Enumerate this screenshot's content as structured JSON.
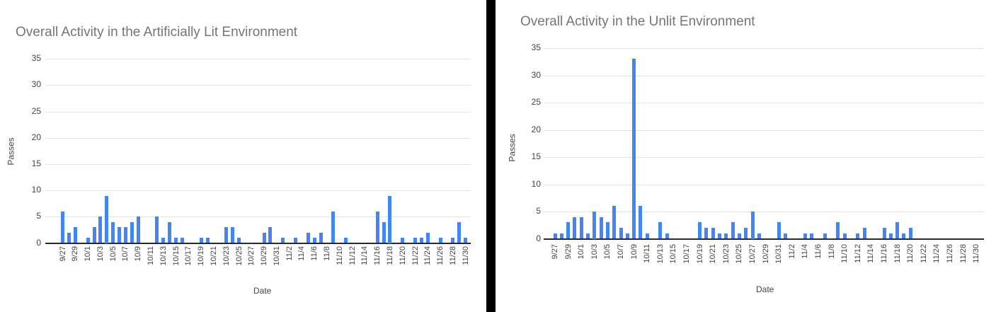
{
  "colors": {
    "bar": "#4285f4",
    "title_text": "#757575",
    "axis_text": "#424242",
    "gridline": "#e3e3e3",
    "axis_line": "#2b2b2b",
    "frame": "#000000"
  },
  "chart_data": [
    {
      "type": "bar",
      "title": "Overall Activity in the Artificially Lit Environment",
      "xlabel": "Date",
      "ylabel": "Passes",
      "ylim": [
        0,
        35
      ],
      "yticks": [
        0,
        5,
        10,
        15,
        20,
        25,
        30,
        35
      ],
      "grid": true,
      "categories": [
        "9/27",
        "9/28",
        "9/29",
        "9/30",
        "10/1",
        "10/2",
        "10/3",
        "10/4",
        "10/5",
        "10/6",
        "10/7",
        "10/8",
        "10/9",
        "10/10",
        "10/11",
        "10/12",
        "10/13",
        "10/14",
        "10/15",
        "10/16",
        "10/17",
        "10/18",
        "10/19",
        "10/20",
        "10/21",
        "10/22",
        "10/23",
        "10/24",
        "10/25",
        "10/26",
        "10/27",
        "10/28",
        "10/29",
        "10/30",
        "10/31",
        "11/1",
        "11/2",
        "11/3",
        "11/4",
        "11/5",
        "11/6",
        "11/7",
        "11/8",
        "11/9",
        "11/10",
        "11/11",
        "11/12",
        "11/13",
        "11/14",
        "11/15",
        "11/16",
        "11/17",
        "11/18",
        "11/19",
        "11/20",
        "11/21",
        "11/22",
        "11/23",
        "11/24",
        "11/25",
        "11/26",
        "11/27",
        "11/28",
        "11/29",
        "11/30"
      ],
      "values": [
        6,
        2,
        3,
        0,
        1,
        3,
        5,
        9,
        4,
        3,
        3,
        4,
        5,
        0,
        0,
        5,
        1,
        4,
        1,
        1,
        0,
        0,
        1,
        1,
        0,
        0,
        3,
        3,
        1,
        0,
        0,
        0,
        2,
        3,
        0,
        1,
        0,
        1,
        0,
        2,
        1,
        2,
        0,
        6,
        0,
        1,
        0,
        0,
        0,
        0,
        6,
        4,
        9,
        0,
        1,
        0,
        1,
        1,
        2,
        0,
        1,
        0,
        1,
        4,
        1
      ],
      "xtick_every": 2
    },
    {
      "type": "bar",
      "title": "Overall Activity in the Unlit Environment",
      "xlabel": "Date",
      "ylabel": "Passes",
      "ylim": [
        0,
        35
      ],
      "yticks": [
        0,
        5,
        10,
        15,
        20,
        25,
        30,
        35
      ],
      "grid": true,
      "categories": [
        "9/27",
        "9/28",
        "9/29",
        "9/30",
        "10/1",
        "10/2",
        "10/3",
        "10/4",
        "10/5",
        "10/6",
        "10/7",
        "10/8",
        "10/9",
        "10/10",
        "10/11",
        "10/12",
        "10/13",
        "10/14",
        "10/15",
        "10/16",
        "10/17",
        "10/18",
        "10/19",
        "10/20",
        "10/21",
        "10/22",
        "10/23",
        "10/24",
        "10/25",
        "10/26",
        "10/27",
        "10/28",
        "10/29",
        "10/30",
        "10/31",
        "11/1",
        "11/2",
        "11/3",
        "11/4",
        "11/5",
        "11/6",
        "11/7",
        "11/8",
        "11/9",
        "11/10",
        "11/11",
        "11/12",
        "11/13",
        "11/14",
        "11/15",
        "11/16",
        "11/17",
        "11/18",
        "11/19",
        "11/20",
        "11/21",
        "11/22",
        "11/23",
        "11/24",
        "11/25",
        "11/26",
        "11/27",
        "11/28",
        "11/29",
        "11/30"
      ],
      "values": [
        1,
        1,
        3,
        4,
        4,
        1,
        5,
        4,
        3,
        6,
        2,
        1,
        33,
        6,
        1,
        0,
        3,
        1,
        0,
        0,
        0,
        0,
        3,
        2,
        2,
        1,
        1,
        3,
        1,
        2,
        5,
        1,
        0,
        0,
        3,
        1,
        0,
        0,
        1,
        1,
        0,
        1,
        0,
        3,
        1,
        0,
        1,
        2,
        0,
        0,
        2,
        1,
        3,
        1,
        2,
        0,
        0,
        0,
        0,
        0,
        0,
        0,
        0,
        0,
        0
      ],
      "xtick_every": 2
    }
  ]
}
